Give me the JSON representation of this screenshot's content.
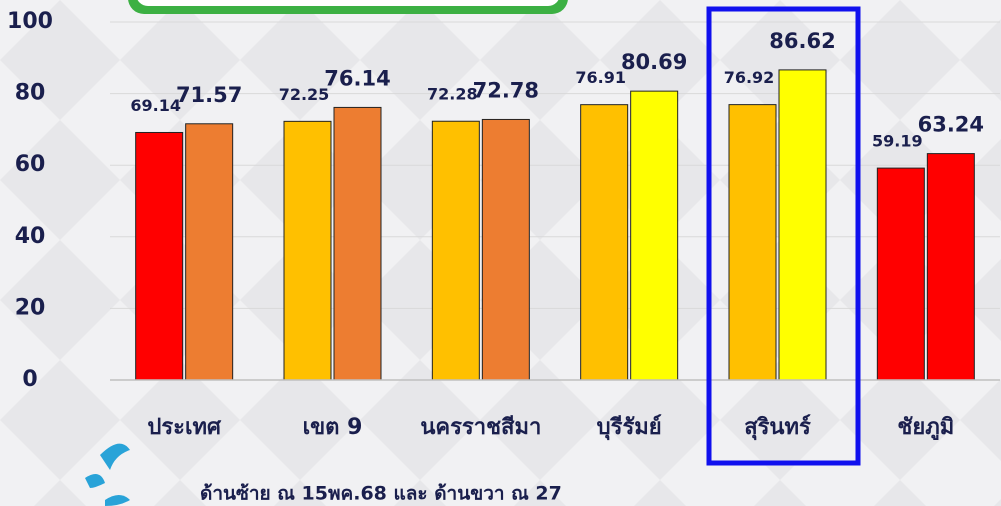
{
  "chart_data": {
    "type": "bar",
    "categories": [
      "ประเทศ",
      "เขต 9",
      "นครราชสีมา",
      "บุรีรัมย์",
      "สุรินทร์",
      "ชัยภูมิ"
    ],
    "series": [
      {
        "colors": [
          "#ff0000",
          "#ffc000",
          "#ffc000",
          "#ffc000",
          "#ffc000",
          "#ff0000"
        ],
        "values": [
          69.14,
          72.25,
          72.28,
          76.91,
          76.92,
          59.19
        ]
      },
      {
        "colors": [
          "#ed7d31",
          "#ed7d31",
          "#ed7d31",
          "#ffff00",
          "#ffff00",
          "#ff0000"
        ],
        "values": [
          71.57,
          76.14,
          72.78,
          80.69,
          86.62,
          63.24
        ]
      }
    ],
    "ylim": [
      0,
      100
    ],
    "yticks": [
      0,
      20,
      40,
      60,
      80,
      100
    ],
    "grid": true,
    "note": "ด้านซ้าย ณ 15พค.68  และ ด้านขวา ณ 27"
  }
}
